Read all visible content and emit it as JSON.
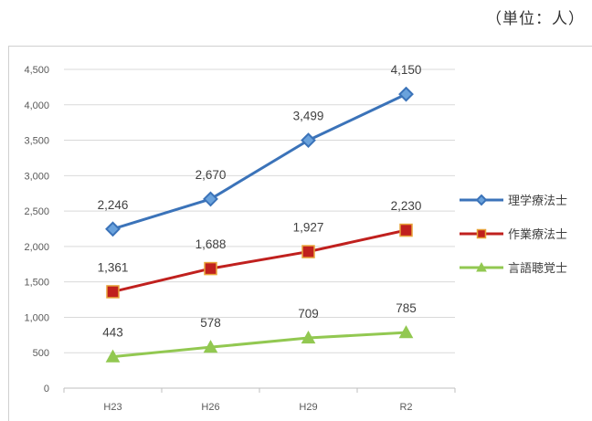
{
  "unit_label": "（単位：人）",
  "chart_data": {
    "type": "line",
    "categories": [
      "H23",
      "H26",
      "H29",
      "R2"
    ],
    "ylim": [
      0,
      4500
    ],
    "yticks": [
      0,
      500,
      1000,
      1500,
      2000,
      2500,
      3000,
      3500,
      4000,
      4500
    ],
    "ytick_labels": [
      "0",
      "500",
      "1,000",
      "1,500",
      "2,000",
      "2,500",
      "3,000",
      "3,500",
      "4,000",
      "4,500"
    ],
    "grid": true,
    "legend_position": "right",
    "series": [
      {
        "name": "理学療法士",
        "values": [
          2246,
          2670,
          3499,
          4150
        ],
        "labels": [
          "2,246",
          "2,670",
          "3,499",
          "4,150"
        ],
        "color": "#3b73b9",
        "marker": "diamond"
      },
      {
        "name": "作業療法士",
        "values": [
          1361,
          1688,
          1927,
          2230
        ],
        "labels": [
          "1,361",
          "1,688",
          "1,927",
          "2,230"
        ],
        "color": "#c0201e",
        "marker": "square"
      },
      {
        "name": "言語聴覚士",
        "values": [
          443,
          578,
          709,
          785
        ],
        "labels": [
          "443",
          "578",
          "709",
          "785"
        ],
        "color": "#92c851",
        "marker": "triangle"
      }
    ]
  }
}
